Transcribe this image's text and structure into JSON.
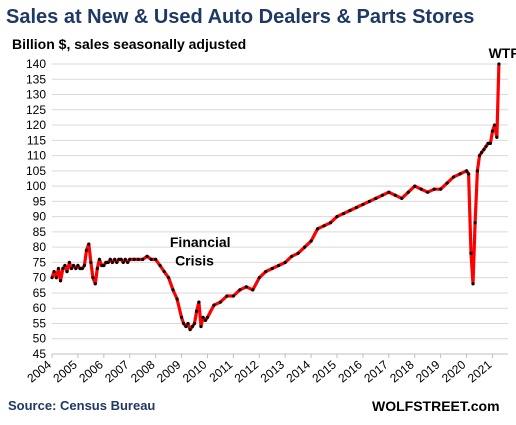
{
  "chart_data": {
    "type": "line",
    "title": "Sales at New & Used Auto Dealers & Parts Stores",
    "subtitle": "Billion $, sales seasonally adjusted",
    "source": "Source: Census Bureau",
    "brand": "WOLFSTREET.com",
    "ylim": [
      45,
      140
    ],
    "yticks": [
      45,
      50,
      55,
      60,
      65,
      70,
      75,
      80,
      85,
      90,
      95,
      100,
      105,
      110,
      115,
      120,
      125,
      130,
      135,
      140
    ],
    "xlim": [
      2004,
      2021.6
    ],
    "xticks": [
      "2004",
      "2005",
      "2006",
      "2007",
      "2008",
      "2009",
      "2010",
      "2011",
      "2012",
      "2013",
      "2014",
      "2015",
      "2016",
      "2017",
      "2018",
      "2019",
      "2020",
      "2021"
    ],
    "grid": true,
    "line_color": "#ff0000",
    "marker_color": "#000000",
    "annotations": [
      {
        "text": "Financial",
        "x": 2008.55,
        "y": 80
      },
      {
        "text": "Crisis",
        "x": 2008.75,
        "y": 74
      },
      {
        "text": "WTF",
        "x": 2020.85,
        "y": 142
      }
    ],
    "series": [
      {
        "x": [
          2004.0,
          2004.08,
          2004.17,
          2004.25,
          2004.33,
          2004.42,
          2004.5,
          2004.58,
          2004.67,
          2004.75,
          2004.83,
          2004.92,
          2005.0,
          2005.08,
          2005.17,
          2005.25,
          2005.33,
          2005.42,
          2005.5,
          2005.58,
          2005.67,
          2005.75,
          2005.83,
          2005.92,
          2006.0,
          2006.08,
          2006.17,
          2006.25,
          2006.33,
          2006.42,
          2006.5,
          2006.58,
          2006.67,
          2006.75,
          2006.83,
          2006.92,
          2007.0,
          2007.17,
          2007.33,
          2007.5,
          2007.67,
          2007.83,
          2008.0,
          2008.17,
          2008.33,
          2008.5,
          2008.67,
          2008.83,
          2009.0,
          2009.08,
          2009.17,
          2009.25,
          2009.33,
          2009.42,
          2009.5,
          2009.58,
          2009.67,
          2009.75,
          2009.83,
          2009.92,
          2010.0,
          2010.25,
          2010.5,
          2010.75,
          2011.0,
          2011.25,
          2011.5,
          2011.75,
          2012.0,
          2012.25,
          2012.5,
          2012.75,
          2013.0,
          2013.25,
          2013.5,
          2013.75,
          2014.0,
          2014.25,
          2014.5,
          2014.75,
          2015.0,
          2015.25,
          2015.5,
          2015.75,
          2016.0,
          2016.25,
          2016.5,
          2016.75,
          2017.0,
          2017.25,
          2017.5,
          2017.75,
          2018.0,
          2018.25,
          2018.5,
          2018.75,
          2019.0,
          2019.25,
          2019.5,
          2019.75,
          2020.0,
          2020.08,
          2020.17,
          2020.25,
          2020.33,
          2020.42,
          2020.5,
          2020.58,
          2020.67,
          2020.75,
          2020.83,
          2020.92,
          2021.0,
          2021.08,
          2021.17,
          2021.25
        ],
        "values": [
          70,
          72,
          70,
          73,
          69,
          73,
          74,
          72,
          75,
          73,
          74,
          73,
          74,
          73,
          73,
          74,
          79,
          81,
          75,
          70,
          68,
          73,
          76,
          74,
          74,
          75,
          75,
          76,
          75,
          76,
          75,
          76,
          76,
          75,
          76,
          75,
          76,
          76,
          76,
          76,
          77,
          76,
          76,
          74,
          72,
          70,
          66,
          63,
          57,
          55,
          54,
          55,
          53,
          54,
          55,
          59,
          62,
          54,
          57,
          56,
          57,
          61,
          62,
          64,
          64,
          66,
          67,
          66,
          70,
          72,
          73,
          74,
          75,
          77,
          78,
          80,
          82,
          86,
          87,
          88,
          90,
          91,
          92,
          93,
          94,
          95,
          96,
          97,
          98,
          97,
          96,
          98,
          100,
          99,
          98,
          99,
          99,
          101,
          103,
          104,
          105,
          104,
          78,
          68,
          88,
          105,
          110,
          111,
          112,
          113,
          114,
          114,
          118,
          120,
          116,
          140
        ]
      }
    ]
  }
}
